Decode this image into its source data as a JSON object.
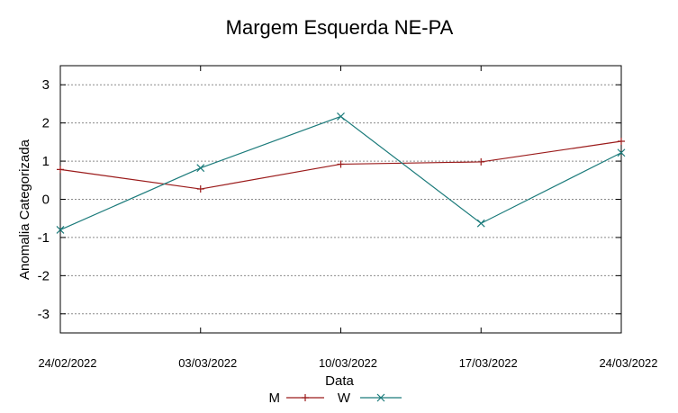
{
  "chart_data": {
    "type": "line",
    "title": "Margem Esquerda NE-PA",
    "xlabel": "Data",
    "ylabel": "Anomalia Categorizada",
    "categories": [
      "24/02/2022",
      "03/03/2022",
      "10/03/2022",
      "17/03/2022",
      "24/03/2022"
    ],
    "ylim": [
      -3.5,
      3.5
    ],
    "yticks": [
      -3,
      -2,
      -1,
      0,
      1,
      2,
      3
    ],
    "grid": true,
    "legend_position": "bottom",
    "series": [
      {
        "name": "M",
        "color": "#9b1b1b",
        "marker": "plus",
        "values": [
          0.78,
          0.27,
          0.92,
          0.98,
          1.52
        ]
      },
      {
        "name": "W",
        "color": "#1a7a7a",
        "marker": "x",
        "values": [
          -0.8,
          0.82,
          2.17,
          -0.63,
          1.22
        ]
      }
    ]
  }
}
